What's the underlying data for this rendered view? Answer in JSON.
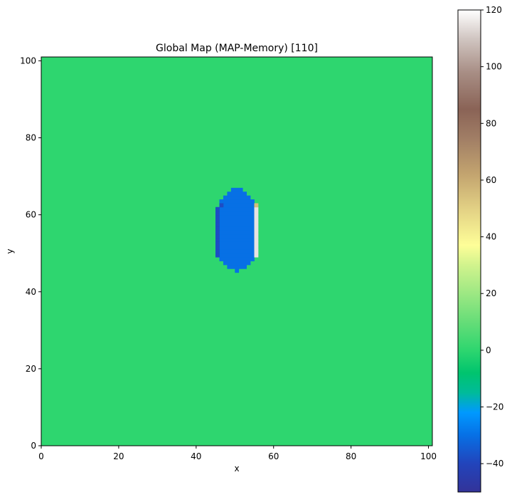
{
  "chart_data": {
    "type": "heatmap",
    "title": "Global Map (MAP-Memory) [110]",
    "xlabel": "x",
    "ylabel": "y",
    "xlim": [
      0,
      101
    ],
    "ylim": [
      0,
      101
    ],
    "xticks": [
      0,
      20,
      40,
      60,
      80,
      100
    ],
    "yticks": [
      0,
      20,
      40,
      60,
      80,
      100
    ],
    "grid": false,
    "background_value": 0,
    "colormap": "terrain",
    "colorbar": {
      "range": [
        -50,
        120
      ],
      "ticks": [
        -40,
        -20,
        0,
        20,
        40,
        60,
        80,
        100,
        120
      ],
      "placement": "right"
    },
    "colormap_stops": [
      {
        "value": -50,
        "color": "#333399"
      },
      {
        "value": -40,
        "color": "#2244bb"
      },
      {
        "value": -30,
        "color": "#0770e5"
      },
      {
        "value": -22,
        "color": "#0099ff"
      },
      {
        "value": -15,
        "color": "#00bb9a"
      },
      {
        "value": -8,
        "color": "#00c46e"
      },
      {
        "value": 0,
        "color": "#2ed66f"
      },
      {
        "value": 10,
        "color": "#66dd78"
      },
      {
        "value": 20,
        "color": "#9de883"
      },
      {
        "value": 30,
        "color": "#d1f38d"
      },
      {
        "value": 37,
        "color": "#fefe98"
      },
      {
        "value": 50,
        "color": "#e2d084"
      },
      {
        "value": 62,
        "color": "#c3a46f"
      },
      {
        "value": 75,
        "color": "#a07d65"
      },
      {
        "value": 85,
        "color": "#8a6356"
      },
      {
        "value": 98,
        "color": "#a88e85"
      },
      {
        "value": 110,
        "color": "#d1c6c2"
      },
      {
        "value": 120,
        "color": "#ffffff"
      }
    ],
    "regions": [
      {
        "name": "lake-core",
        "value": -30,
        "rows": [
          [
            45,
            50,
            51
          ],
          [
            46,
            48,
            53
          ],
          [
            47,
            47,
            54
          ],
          [
            48,
            46,
            55
          ],
          [
            49,
            45,
            55
          ],
          [
            50,
            45,
            55
          ],
          [
            51,
            45,
            55
          ],
          [
            52,
            45,
            55
          ],
          [
            53,
            45,
            55
          ],
          [
            54,
            45,
            55
          ],
          [
            55,
            45,
            55
          ],
          [
            56,
            45,
            55
          ],
          [
            57,
            45,
            55
          ],
          [
            58,
            45,
            55
          ],
          [
            59,
            45,
            55
          ],
          [
            60,
            45,
            55
          ],
          [
            61,
            45,
            55
          ],
          [
            62,
            46,
            55
          ],
          [
            63,
            46,
            55
          ],
          [
            64,
            47,
            54
          ],
          [
            65,
            48,
            53
          ],
          [
            66,
            49,
            52
          ]
        ]
      },
      {
        "name": "lake-left-edge",
        "value": -38,
        "rows": [
          [
            49,
            45,
            46
          ],
          [
            50,
            45,
            46
          ],
          [
            51,
            45,
            46
          ],
          [
            52,
            45,
            46
          ],
          [
            53,
            45,
            46
          ],
          [
            54,
            45,
            46
          ],
          [
            55,
            45,
            46
          ],
          [
            56,
            45,
            46
          ],
          [
            57,
            45,
            46
          ],
          [
            58,
            45,
            46
          ],
          [
            59,
            45,
            46
          ],
          [
            60,
            45,
            46
          ],
          [
            61,
            45,
            46
          ],
          [
            62,
            46,
            47
          ]
        ]
      },
      {
        "name": "ridge-right-edge",
        "value": 115,
        "rows": [
          [
            49,
            55,
            56
          ],
          [
            50,
            55,
            56
          ],
          [
            51,
            55,
            56
          ],
          [
            52,
            55,
            56
          ],
          [
            53,
            55,
            56
          ],
          [
            54,
            55,
            56
          ],
          [
            55,
            55,
            56
          ],
          [
            56,
            55,
            56
          ],
          [
            57,
            55,
            56
          ],
          [
            58,
            55,
            56
          ],
          [
            59,
            55,
            56
          ],
          [
            60,
            55,
            56
          ],
          [
            61,
            55,
            56
          ]
        ]
      },
      {
        "name": "ridge-top-accent",
        "value": 55,
        "rows": [
          [
            62,
            55,
            56
          ]
        ]
      }
    ]
  }
}
